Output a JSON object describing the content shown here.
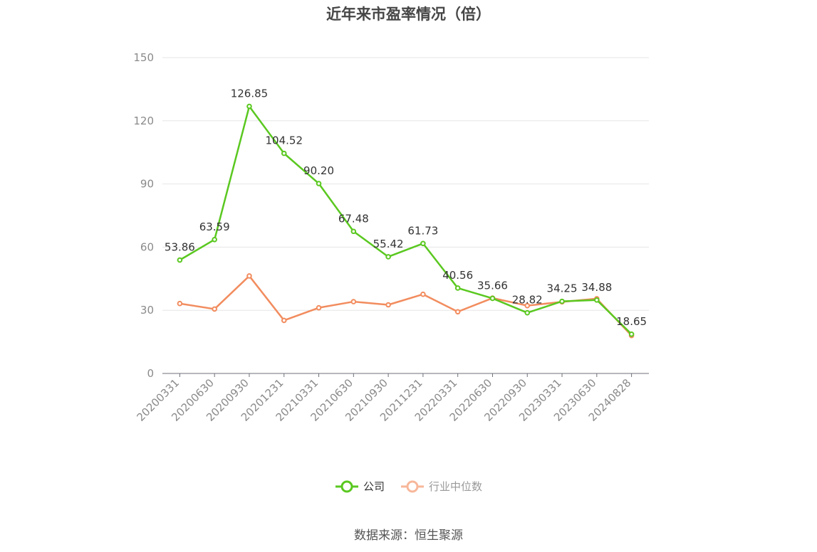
{
  "chart_data": {
    "type": "line",
    "title": "近年来市盈率情况（倍）",
    "categories": [
      "20200331",
      "20200630",
      "20200930",
      "20201231",
      "20210331",
      "20210630",
      "20210930",
      "20211231",
      "20220331",
      "20220630",
      "20220930",
      "20230331",
      "20230630",
      "20240828"
    ],
    "series": [
      {
        "name": "公司",
        "color": "#5ac820",
        "values": [
          53.86,
          63.59,
          126.85,
          104.52,
          90.2,
          67.48,
          55.42,
          61.73,
          40.56,
          35.66,
          28.82,
          34.25,
          34.88,
          18.65
        ],
        "labels": [
          "53.86",
          "63.59",
          "126.85",
          "104.52",
          "90.20",
          "67.48",
          "55.42",
          "61.73",
          "40.56",
          "35.66",
          "28.82",
          "34.25",
          "34.88",
          "18.65"
        ]
      },
      {
        "name": "行业中位数",
        "color": "#f28c5e",
        "values": [
          33.2,
          30.6,
          46.3,
          25.2,
          31.2,
          34.1,
          32.6,
          37.6,
          29.3,
          35.8,
          32.2,
          34.0,
          35.5,
          18.0
        ]
      }
    ],
    "yticks": [
      "0",
      "30",
      "60",
      "90",
      "120",
      "150"
    ],
    "ylim": [
      0,
      150
    ],
    "grid": true,
    "legend_position": "bottom",
    "legend_inactive_color": "#f7b79a",
    "legend_inactive_text_color": "#999999"
  },
  "footer": {
    "source": "数据来源：恒生聚源"
  }
}
